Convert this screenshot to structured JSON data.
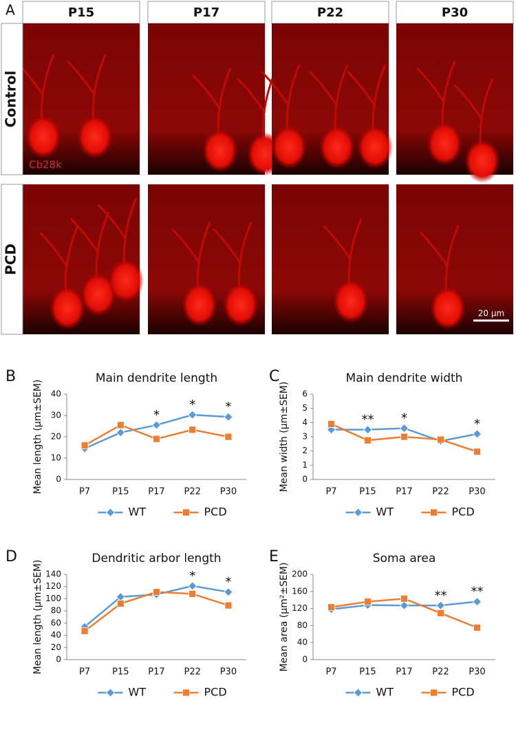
{
  "panel_a": {
    "label": "A",
    "columns": [
      "P15",
      "P17",
      "P22",
      "P30"
    ],
    "rows": [
      "Control",
      "PCD"
    ],
    "stain": "Cb28k",
    "scale_bar": "20 µm"
  },
  "chart_data": [
    {
      "type": "line",
      "label": "B",
      "title": "Main dendrite length",
      "y_label": "Mean length (µm±SEM)",
      "categories": [
        "P7",
        "P15",
        "P17",
        "P22",
        "P30"
      ],
      "ylim": [
        0,
        40
      ],
      "yticks": [
        0,
        10,
        20,
        30,
        40
      ],
      "series": [
        {
          "name": "WT",
          "color": "#5b9bd5",
          "marker": "diamond",
          "values": [
            14.5,
            22,
            25.5,
            30.3,
            29.3
          ]
        },
        {
          "name": "PCD",
          "color": "#ed7d31",
          "marker": "square",
          "values": [
            16,
            25.5,
            19,
            23.3,
            20
          ]
        }
      ],
      "annotations": [
        {
          "text": "*",
          "category": "P17"
        },
        {
          "text": "*",
          "category": "P22"
        },
        {
          "text": "*",
          "category": "P30"
        }
      ]
    },
    {
      "type": "line",
      "label": "C",
      "title": "Main dendrite width",
      "y_label": "Mean width (µm±SEM)",
      "categories": [
        "P7",
        "P15",
        "P17",
        "P22",
        "P30"
      ],
      "ylim": [
        0,
        6
      ],
      "yticks": [
        0,
        1,
        2,
        3,
        4,
        5,
        6
      ],
      "series": [
        {
          "name": "WT",
          "color": "#5b9bd5",
          "marker": "diamond",
          "values": [
            3.5,
            3.5,
            3.6,
            2.7,
            3.2
          ]
        },
        {
          "name": "PCD",
          "color": "#ed7d31",
          "marker": "square",
          "values": [
            3.9,
            2.75,
            3.0,
            2.8,
            1.95
          ]
        }
      ],
      "annotations": [
        {
          "text": "**",
          "category": "P15"
        },
        {
          "text": "*",
          "category": "P17"
        },
        {
          "text": "*",
          "category": "P30"
        }
      ]
    },
    {
      "type": "line",
      "label": "D",
      "title": "Dendritic arbor length",
      "y_label": "Mean length (µm±SEM)",
      "categories": [
        "P7",
        "P15",
        "P17",
        "P22",
        "P30"
      ],
      "ylim": [
        0,
        140
      ],
      "yticks": [
        0,
        20,
        40,
        60,
        80,
        100,
        120,
        140
      ],
      "series": [
        {
          "name": "WT",
          "color": "#5b9bd5",
          "marker": "diamond",
          "values": [
            54,
            103,
            107,
            121,
            111
          ]
        },
        {
          "name": "PCD",
          "color": "#ed7d31",
          "marker": "square",
          "values": [
            47,
            92,
            111,
            108,
            89
          ]
        }
      ],
      "annotations": [
        {
          "text": "*",
          "category": "P22"
        },
        {
          "text": "*",
          "category": "P30"
        }
      ]
    },
    {
      "type": "line",
      "label": "E",
      "title": "Soma area",
      "y_label": "Mean area (µm²±SEM)",
      "categories": [
        "P7",
        "P15",
        "P17",
        "P22",
        "P30"
      ],
      "ylim": [
        0,
        200
      ],
      "yticks": [
        0,
        40,
        80,
        120,
        160,
        200
      ],
      "series": [
        {
          "name": "WT",
          "color": "#5b9bd5",
          "marker": "diamond",
          "values": [
            118,
            128,
            127,
            127,
            136
          ]
        },
        {
          "name": "PCD",
          "color": "#ed7d31",
          "marker": "square",
          "values": [
            123,
            136,
            143,
            109,
            75
          ]
        }
      ],
      "annotations": [
        {
          "text": "**",
          "category": "P22"
        },
        {
          "text": "**",
          "category": "P30"
        }
      ]
    }
  ]
}
